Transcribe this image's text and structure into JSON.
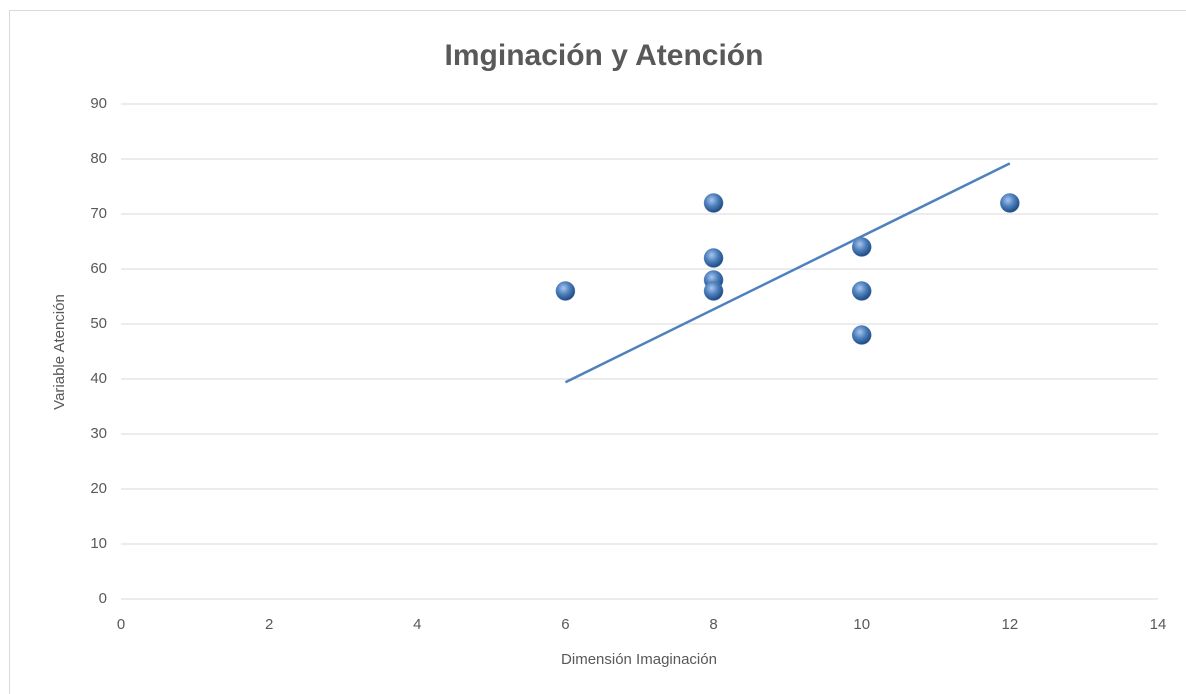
{
  "chart_data": {
    "type": "scatter",
    "title": "Imginación y Atención",
    "x_label": "Dimensión Imaginación",
    "y_label": "Variable Atención",
    "series": [
      {
        "color": "#4f81bd",
        "x": [
          6,
          8,
          8,
          8,
          8,
          10,
          10,
          10,
          12
        ],
        "values": [
          56,
          72,
          62,
          58,
          56,
          64,
          56,
          48,
          72
        ]
      }
    ],
    "trendline": {
      "color": "#4f81bd",
      "x": [
        6,
        12
      ],
      "values": [
        39.4,
        79.2
      ]
    },
    "xlim": [
      0,
      14
    ],
    "xticks": [
      0,
      2,
      4,
      6,
      8,
      10,
      12,
      14
    ],
    "ylim": [
      0,
      90
    ],
    "yticks": [
      0,
      10,
      20,
      30,
      40,
      50,
      60,
      70,
      80,
      90
    ],
    "grid": true
  }
}
